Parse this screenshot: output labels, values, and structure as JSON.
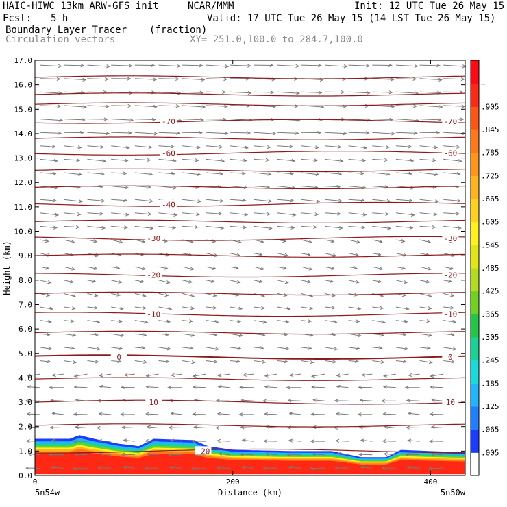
{
  "header": {
    "model": "HAIC-HIWC 13km ARW-GFS init",
    "org": "NCAR/MMM",
    "init": "Init: 12 UTC Tue 26 May 15",
    "fcst_label": "Fcst:",
    "fcst_value": "5 h",
    "valid": "Valid: 17 UTC Tue 26 May 15 (14 LST Tue 26 May 15)",
    "field1": "Boundary Layer Tracer",
    "field1_units": "(fraction)",
    "field2": "Circulation vectors",
    "xy": "XY= 251.0,100.0 to 284.7,100.0"
  },
  "chart_data": {
    "type": "heatmap",
    "xlabel": "Distance (km)",
    "ylabel": "Height (km)",
    "xlim": [
      0,
      435
    ],
    "ylim": [
      0,
      17
    ],
    "x_ticks": [
      0,
      200,
      400
    ],
    "y_ticks": [
      "0.0",
      "1.0",
      "2.0",
      "3.0",
      "4.0",
      "5.0",
      "6.0",
      "7.0",
      "8.0",
      "9.0",
      "10.0",
      "11.0",
      "12.0",
      "13.0",
      "14.0",
      "15.0",
      "16.0",
      "17.0"
    ],
    "x_end_labels": [
      "5n54w",
      "5n50w"
    ],
    "colorbar_labels": [
      ".005",
      ".065",
      ".125",
      ".185",
      ".245",
      ".305",
      ".365",
      ".425",
      ".485",
      ".545",
      ".605",
      ".665",
      ".725",
      ".785",
      ".845",
      ".905",
      "–"
    ],
    "colorbar_colors": [
      "#ffffff",
      "#1a3cff",
      "#1f7fff",
      "#22b4ff",
      "#18dcdc",
      "#19d296",
      "#22c845",
      "#6ed21e",
      "#b4dc1e",
      "#e1e614",
      "#fff01e",
      "#ffd21e",
      "#ffb41e",
      "#ff9619",
      "#ff7819",
      "#ff5514",
      "#ff2814",
      "#ff0a14"
    ],
    "tracer_top_km": [
      [
        0,
        1.5
      ],
      [
        35,
        1.5
      ],
      [
        45,
        1.65
      ],
      [
        60,
        1.5
      ],
      [
        85,
        1.3
      ],
      [
        105,
        1.2
      ],
      [
        120,
        1.5
      ],
      [
        160,
        1.45
      ],
      [
        175,
        1.2
      ],
      [
        200,
        1.05
      ],
      [
        260,
        1.0
      ],
      [
        300,
        1.0
      ],
      [
        330,
        0.75
      ],
      [
        355,
        0.75
      ],
      [
        370,
        1.05
      ],
      [
        400,
        1.0
      ],
      [
        435,
        0.95
      ]
    ],
    "isotherms": [
      {
        "label": "10",
        "z": 3.0,
        "labels_at": [
          120,
          420
        ]
      },
      {
        "label": "0",
        "z": 4.85,
        "labels_at": [
          85,
          420
        ]
      },
      {
        "label": "-10",
        "z": 6.6,
        "labels_at": [
          120,
          420
        ]
      },
      {
        "label": "-20",
        "z": 8.2,
        "labels_at": [
          120,
          420
        ]
      },
      {
        "label": "-30",
        "z": 9.7,
        "labels_at": [
          120,
          420
        ]
      },
      {
        "label": "-40",
        "z": 11.1,
        "labels_at": [
          135
        ]
      },
      {
        "label": "-60",
        "z": 13.2,
        "labels_at": [
          135,
          420
        ]
      },
      {
        "label": "-70",
        "z": 14.5,
        "labels_at": [
          135,
          420
        ]
      },
      {
        "label": "-20",
        "z": 1.0,
        "labels_at": [
          170
        ]
      }
    ],
    "grid": false
  }
}
